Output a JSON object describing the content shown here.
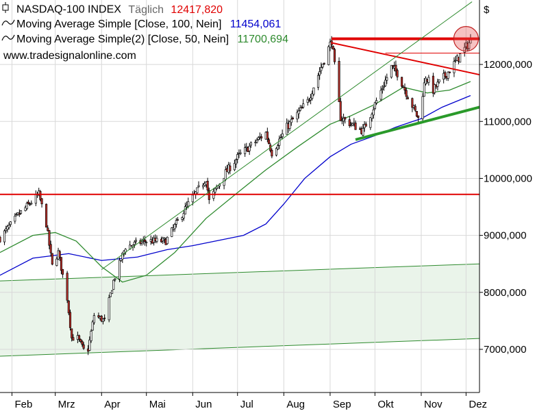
{
  "legend": {
    "instrument": "NASDAQ-100 INDEX",
    "period": "Täglich",
    "last_value": "12417,820",
    "ma1_label": "Moving Average Simple  [Close, 100, Nein]",
    "ma1_value": "11454,061",
    "ma2_label": "Moving Average Simple(2)  [Close, 50, Nein]",
    "ma2_value": "11700,694",
    "source": "www.tradesignalonline.com",
    "icons": {
      "candle": "candlestick-icon",
      "ma": "wave-icon"
    }
  },
  "colors": {
    "up_candle": "#ffffff",
    "down_candle": "#c0312b",
    "ma100": "#0000cc",
    "ma50": "#2d8a2d",
    "resistance": "#e00000",
    "support": "#2a9a2a",
    "channel_fill": "#eaf4ea",
    "grid": "#d8d8d8",
    "value_red": "#e00000",
    "value_blue": "#0000cc",
    "value_green": "#2d8a2d"
  },
  "chart_data": {
    "type": "candlestick",
    "currency": "$",
    "x_range": [
      "2020-01-24",
      "2020-12-10"
    ],
    "ylim": [
      6050,
      13100
    ],
    "y_ticks": [
      {
        "value": 7000,
        "label": "7000,000"
      },
      {
        "value": 8000,
        "label": "8000,000"
      },
      {
        "value": 9000,
        "label": "9000,000"
      },
      {
        "value": 10000,
        "label": "10000,000"
      },
      {
        "value": 11000,
        "label": "11000,000"
      },
      {
        "value": 12000,
        "label": "12000,000"
      }
    ],
    "x_ticks": [
      {
        "date": "2020-02-01",
        "label": "Feb"
      },
      {
        "date": "2020-03-01",
        "label": "Mrz"
      },
      {
        "date": "2020-04-01",
        "label": "Apr"
      },
      {
        "date": "2020-05-01",
        "label": "Mai"
      },
      {
        "date": "2020-06-01",
        "label": "Jun"
      },
      {
        "date": "2020-07-01",
        "label": "Jul"
      },
      {
        "date": "2020-08-01",
        "label": "Aug"
      },
      {
        "date": "2020-09-01",
        "label": "Sep"
      },
      {
        "date": "2020-10-01",
        "label": "Okt"
      },
      {
        "date": "2020-11-01",
        "label": "Nov"
      },
      {
        "date": "2020-12-01",
        "label": "Dez"
      }
    ],
    "close_path": [
      [
        "2020-01-24",
        8950
      ],
      [
        "2020-02-05",
        9350
      ],
      [
        "2020-02-19",
        9720
      ],
      [
        "2020-02-24",
        9200
      ],
      [
        "2020-02-28",
        8460
      ],
      [
        "2020-03-03",
        8700
      ],
      [
        "2020-03-09",
        7900
      ],
      [
        "2020-03-12",
        7200
      ],
      [
        "2020-03-16",
        7200
      ],
      [
        "2020-03-20",
        6990
      ],
      [
        "2020-03-23",
        7000
      ],
      [
        "2020-03-27",
        7600
      ],
      [
        "2020-04-03",
        7500
      ],
      [
        "2020-04-09",
        8200
      ],
      [
        "2020-04-17",
        8800
      ],
      [
        "2020-04-30",
        8900
      ],
      [
        "2020-05-14",
        8900
      ],
      [
        "2020-05-29",
        9550
      ],
      [
        "2020-06-10",
        10000
      ],
      [
        "2020-06-12",
        9600
      ],
      [
        "2020-06-23",
        10100
      ],
      [
        "2020-07-02",
        10400
      ],
      [
        "2020-07-20",
        10800
      ],
      [
        "2020-07-24",
        10450
      ],
      [
        "2020-08-03",
        10900
      ],
      [
        "2020-08-17",
        11350
      ],
      [
        "2020-09-02",
        12420
      ],
      [
        "2020-09-08",
        11070
      ],
      [
        "2020-09-23",
        10830
      ],
      [
        "2020-10-12",
        11950
      ],
      [
        "2020-10-16",
        11850
      ],
      [
        "2020-10-30",
        11050
      ],
      [
        "2020-11-04",
        11800
      ],
      [
        "2020-11-09",
        11550
      ],
      [
        "2020-11-20",
        11900
      ],
      [
        "2020-12-04",
        12417
      ]
    ],
    "ma100": [
      [
        "2020-01-24",
        8300
      ],
      [
        "2020-02-15",
        8600
      ],
      [
        "2020-03-10",
        8680
      ],
      [
        "2020-04-01",
        8560
      ],
      [
        "2020-04-25",
        8620
      ],
      [
        "2020-05-15",
        8750
      ],
      [
        "2020-06-01",
        8820
      ],
      [
        "2020-06-20",
        8920
      ],
      [
        "2020-07-05",
        9000
      ],
      [
        "2020-07-20",
        9200
      ],
      [
        "2020-08-01",
        9550
      ],
      [
        "2020-08-15",
        10000
      ],
      [
        "2020-09-01",
        10380
      ],
      [
        "2020-09-15",
        10600
      ],
      [
        "2020-10-01",
        10750
      ],
      [
        "2020-10-15",
        10900
      ],
      [
        "2020-11-01",
        11050
      ],
      [
        "2020-11-15",
        11250
      ],
      [
        "2020-12-04",
        11454
      ]
    ],
    "ma50": [
      [
        "2020-01-24",
        8700
      ],
      [
        "2020-02-15",
        9000
      ],
      [
        "2020-03-01",
        9050
      ],
      [
        "2020-03-15",
        8900
      ],
      [
        "2020-04-01",
        8450
      ],
      [
        "2020-04-15",
        8180
      ],
      [
        "2020-05-01",
        8300
      ],
      [
        "2020-05-20",
        8700
      ],
      [
        "2020-06-10",
        9300
      ],
      [
        "2020-07-01",
        9750
      ],
      [
        "2020-07-20",
        10150
      ],
      [
        "2020-08-10",
        10550
      ],
      [
        "2020-09-01",
        10950
      ],
      [
        "2020-09-15",
        11100
      ],
      [
        "2020-10-01",
        11300
      ],
      [
        "2020-10-20",
        11600
      ],
      [
        "2020-11-05",
        11500
      ],
      [
        "2020-11-20",
        11550
      ],
      [
        "2020-12-04",
        11700
      ]
    ],
    "trend_lines": [
      {
        "id": "resistance-high",
        "color": "resistance",
        "width": 4,
        "from": [
          "2020-09-02",
          12450
        ],
        "to": [
          "2020-12-10",
          12450
        ]
      },
      {
        "id": "resistance-thin",
        "color": "resistance",
        "width": 1,
        "from": [
          "2020-10-08",
          12200
        ],
        "to": [
          "2020-12-10",
          12200
        ]
      },
      {
        "id": "descending-resistance",
        "color": "resistance",
        "width": 2,
        "from": [
          "2020-09-02",
          12380
        ],
        "to": [
          "2020-12-10",
          11820
        ]
      },
      {
        "id": "february-high",
        "color": "resistance",
        "width": 2,
        "from": [
          "2020-01-24",
          9720
        ],
        "to": [
          "2020-12-10",
          9720
        ]
      },
      {
        "id": "rising-support",
        "color": "support",
        "width": 4,
        "from": [
          "2020-09-18",
          10680
        ],
        "to": [
          "2020-12-10",
          11250
        ]
      },
      {
        "id": "upper-channel",
        "color": "ma50",
        "width": 1,
        "from": [
          "2020-04-01",
          8400
        ],
        "to": [
          "2020-12-05",
          13100
        ]
      }
    ],
    "channel": {
      "upper": [
        [
          "2020-01-24",
          8200
        ],
        [
          "2020-12-10",
          8500
        ]
      ],
      "lower": [
        [
          "2020-01-24",
          6880
        ],
        [
          "2020-12-10",
          7190
        ]
      ]
    },
    "highlight": {
      "date": "2020-12-01",
      "value": 12450
    },
    "grid": true
  }
}
